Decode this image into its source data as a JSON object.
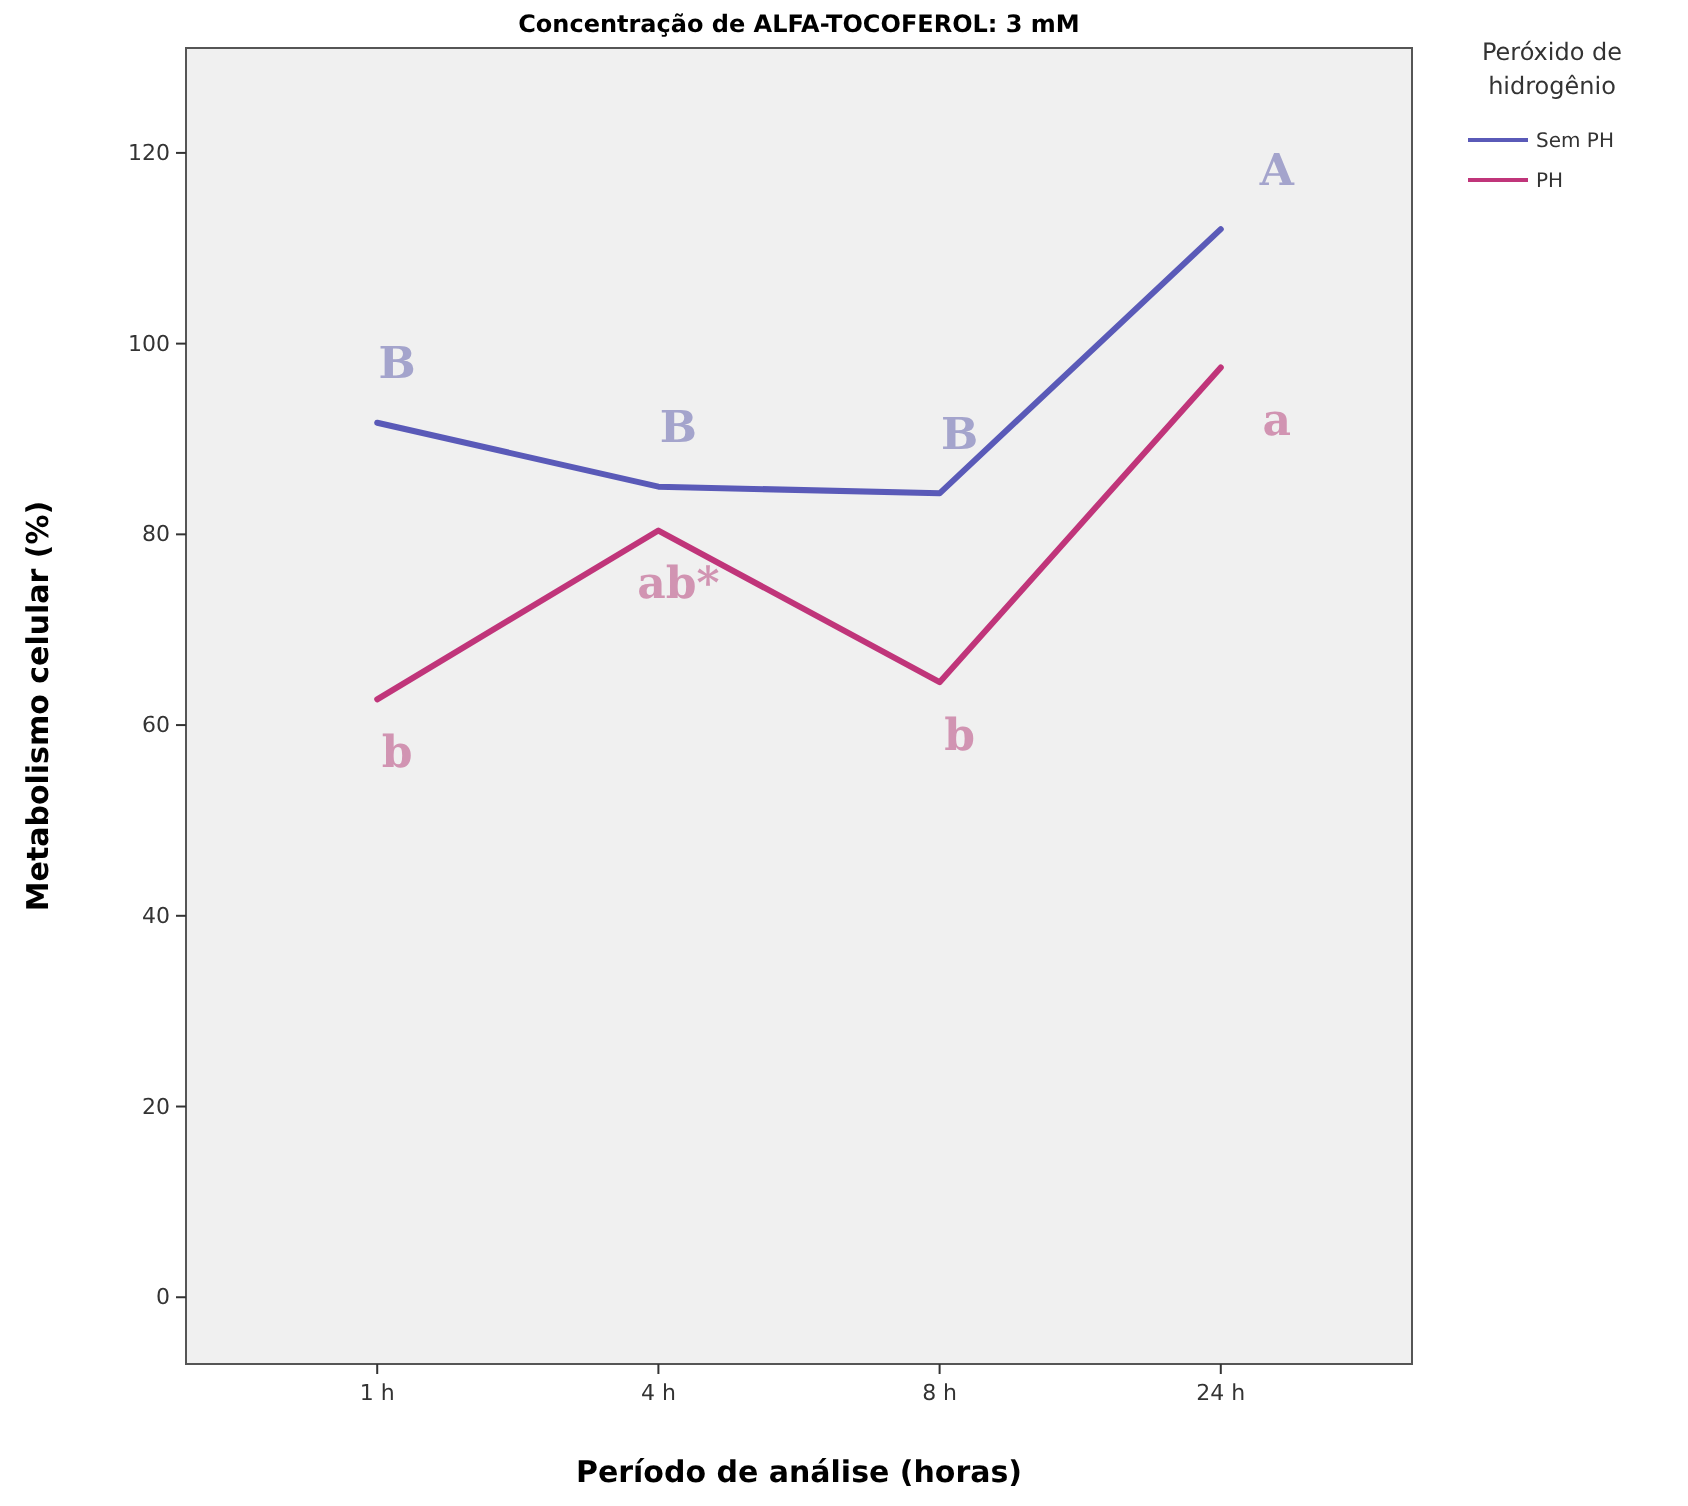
{
  "chart_data": {
    "type": "line",
    "title": "Concentração de ALFA-TOCOFEROL: 3 mM",
    "xlabel": "Período de análise (horas)",
    "ylabel": "Metabolismo celular (%)",
    "legend_title": "Peróxido de hidrogênio",
    "categories": [
      "1 h",
      "4 h",
      "8 h",
      "24 h"
    ],
    "series": [
      {
        "name": "Sem PH",
        "color": "#5a5ab8",
        "values": [
          91.7,
          85.0,
          84.3,
          112
        ]
      },
      {
        "name": "PH",
        "color": "#c0357a",
        "values": [
          62.7,
          80.4,
          64.5,
          97.5
        ]
      }
    ],
    "ylim": [
      -7,
      131
    ],
    "yticks": [
      0,
      20,
      40,
      60,
      80,
      100,
      120
    ],
    "grid": false,
    "legend": "right",
    "marker": "none",
    "line_style": "solid",
    "annotations": [
      "B",
      "B",
      "B",
      "A",
      "b",
      "ab*",
      "b",
      "a"
    ]
  }
}
